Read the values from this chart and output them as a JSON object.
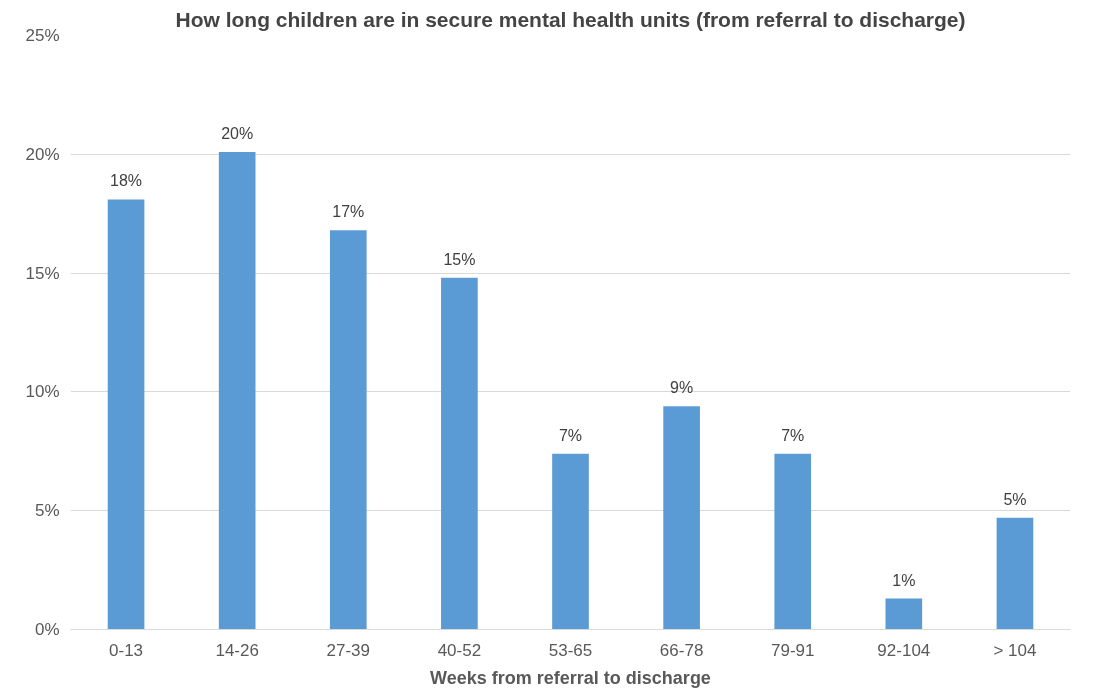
{
  "chart_data": {
    "type": "bar",
    "title": "How long children are in secure mental health units (from referral to discharge)",
    "xlabel": "Weeks from referral to discharge",
    "categories": [
      "0-13",
      "14-26",
      "27-39",
      "40-52",
      "53-65",
      "66-78",
      "79-91",
      "92-104",
      "> 104"
    ],
    "values": [
      18.1,
      20.1,
      16.8,
      14.8,
      7.4,
      9.4,
      7.4,
      1.3,
      4.7
    ],
    "value_labels": [
      "18%",
      "20%",
      "17%",
      "15%",
      "7%",
      "9%",
      "7%",
      "1%",
      "5%"
    ],
    "color": "#5b9bd5",
    "ylim": [
      0,
      25
    ],
    "yticks": [
      {
        "value": 0,
        "label": "0%"
      },
      {
        "value": 5,
        "label": "5%"
      },
      {
        "value": 10,
        "label": "10%"
      },
      {
        "value": 15,
        "label": "15%"
      },
      {
        "value": 20,
        "label": "20%"
      },
      {
        "value": 25,
        "label": "25%"
      }
    ],
    "grid": "y"
  }
}
